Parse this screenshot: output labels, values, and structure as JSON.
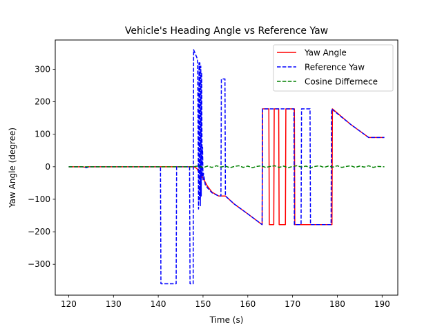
{
  "chart_data": {
    "type": "line",
    "title": "Vehicle's Heading Angle vs Reference Yaw",
    "xlabel": "Time (s)",
    "ylabel": "Yaw Angle (degree)",
    "xlim": [
      117,
      193.5
    ],
    "ylim": [
      -395,
      390
    ],
    "x_ticks": [
      120,
      130,
      140,
      150,
      160,
      170,
      180,
      190
    ],
    "y_ticks": [
      -300,
      -200,
      -100,
      0,
      100,
      200,
      300
    ],
    "x_tick_labels": [
      "120",
      "130",
      "140",
      "150",
      "160",
      "170",
      "180",
      "190"
    ],
    "y_tick_labels": [
      "−300",
      "−200",
      "−100",
      "0",
      "100",
      "200",
      "300"
    ],
    "grid": false,
    "legend_position": "top-right",
    "series": [
      {
        "name": "Yaw Angle",
        "color": "#ff0000",
        "style": "solid",
        "x": [
          120,
          123,
          124,
          124.5,
          130,
          140,
          145,
          148,
          148.6,
          149,
          149.5,
          150.2,
          151,
          152,
          153.5,
          154,
          155,
          157,
          160,
          163.2,
          163.3,
          163.4,
          164.7,
          164.8,
          165.8,
          165.9,
          166.9,
          167,
          168.4,
          168.5,
          169.5,
          169.6,
          170.4,
          170.5,
          172,
          175,
          178,
          178.8,
          178.9,
          183,
          187,
          190.5
        ],
        "y": [
          0,
          0,
          -2,
          0,
          0,
          0,
          0,
          0,
          -5,
          -15,
          -25,
          -40,
          -60,
          -78,
          -90,
          -90,
          -90,
          -115,
          -145,
          -178,
          178,
          178,
          178,
          -178,
          -178,
          178,
          178,
          -178,
          -178,
          178,
          178,
          178,
          178,
          -178,
          -178,
          -178,
          -178,
          -178,
          178,
          130,
          90,
          90
        ]
      },
      {
        "name": "Reference Yaw",
        "color": "#0000ff",
        "style": "dashed",
        "x": [
          120,
          123,
          124,
          124.5,
          130,
          140.5,
          140.6,
          144,
          144.1,
          147,
          147.1,
          147.8,
          147.9,
          148.8,
          149,
          149.1,
          149.2,
          149.3,
          149.4,
          149.5,
          149.6,
          149.7,
          149.8,
          149.9,
          150,
          150.1,
          150.5,
          151,
          152,
          153.5,
          154,
          154.1,
          154.9,
          155,
          157,
          160,
          163.2,
          163.3,
          163.4,
          170.3,
          170.4,
          171.9,
          172,
          173.9,
          174,
          178.6,
          178.7,
          183,
          187,
          190.5
        ],
        "y": [
          0,
          0,
          -3,
          0,
          0,
          0,
          -360,
          -360,
          0,
          0,
          -360,
          -360,
          360,
          330,
          -130,
          320,
          -100,
          320,
          -120,
          310,
          -90,
          290,
          -30,
          60,
          -40,
          -20,
          -55,
          -65,
          -80,
          -90,
          -90,
          270,
          270,
          -90,
          -115,
          -145,
          -178,
          178,
          178,
          178,
          -178,
          -178,
          178,
          178,
          -178,
          -178,
          178,
          130,
          90,
          90
        ]
      },
      {
        "name": "Cosine Differnece",
        "color": "#008000",
        "style": "dashed",
        "x": [
          120,
          130,
          140,
          148,
          149,
          150,
          151,
          152,
          153,
          154,
          155,
          156,
          157,
          158,
          159,
          160,
          161,
          162,
          163,
          164,
          165,
          166,
          167,
          168,
          169,
          170,
          171,
          172,
          173,
          174,
          175,
          176,
          177,
          178,
          179,
          180,
          181,
          182,
          183,
          184,
          185,
          186,
          187,
          188,
          189,
          190.5
        ],
        "y": [
          0,
          0,
          0,
          0,
          3,
          -3,
          2,
          -2,
          3,
          -1,
          2,
          -3,
          1,
          3,
          -2,
          2,
          -3,
          1,
          3,
          -2,
          1,
          3,
          -2,
          2,
          -3,
          1,
          3,
          -1,
          2,
          -3,
          1,
          3,
          -2,
          2,
          -1,
          3,
          -2,
          1,
          3,
          -2,
          2,
          -1,
          3,
          -2,
          1,
          0
        ]
      }
    ]
  }
}
